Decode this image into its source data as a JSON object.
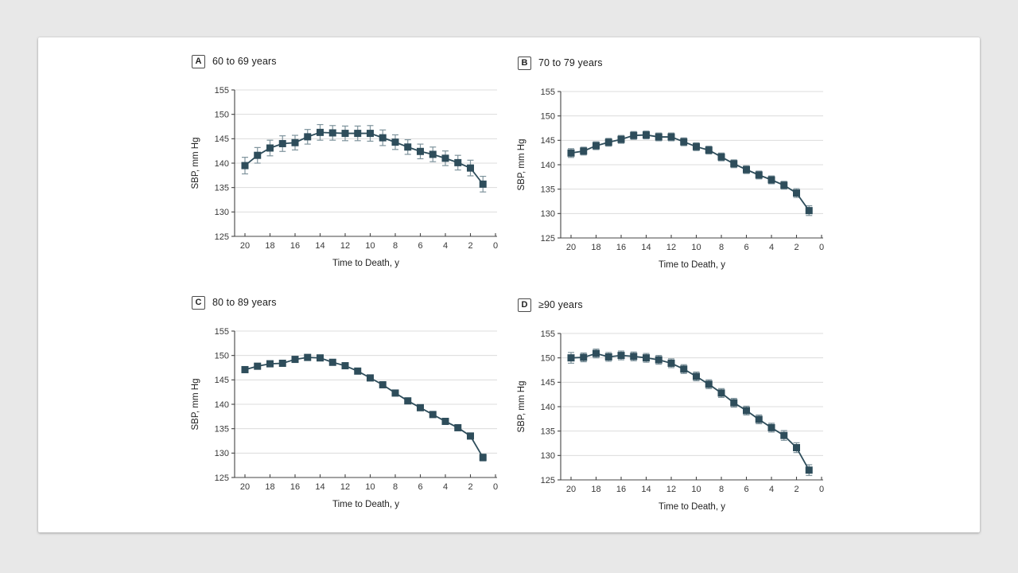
{
  "page": {
    "background_color": "#e8e8e8",
    "card_color": "#ffffff"
  },
  "style": {
    "series_color": "#2e4d5b",
    "error_bar_color": "#7e939c",
    "grid_color": "#dcdcdc",
    "axis_color": "#444444",
    "tick_text_color": "#383838",
    "title_text_color": "#222222"
  },
  "chart_data": [
    {
      "type": "line",
      "panel_label": "A",
      "title": "60 to 69 years",
      "xlabel": "Time to Death, y",
      "ylabel": "SBP, mm Hg",
      "x": [
        20,
        19,
        18,
        17,
        16,
        15,
        14,
        13,
        12,
        11,
        10,
        9,
        8,
        7,
        6,
        5,
        4,
        3,
        2,
        1
      ],
      "values": [
        139.5,
        141.6,
        143.1,
        144.0,
        144.2,
        145.4,
        146.3,
        146.2,
        146.1,
        146.1,
        146.1,
        145.2,
        144.3,
        143.3,
        142.4,
        141.8,
        141.0,
        140.1,
        139.0,
        135.7
      ],
      "errors": [
        1.7,
        1.6,
        1.6,
        1.6,
        1.5,
        1.5,
        1.6,
        1.5,
        1.5,
        1.5,
        1.6,
        1.6,
        1.5,
        1.5,
        1.5,
        1.5,
        1.5,
        1.5,
        1.6,
        1.6
      ],
      "ylim": [
        125,
        155
      ],
      "yticks": [
        125,
        130,
        135,
        140,
        145,
        150,
        155
      ],
      "xticks": [
        20,
        18,
        16,
        14,
        12,
        10,
        8,
        6,
        4,
        2,
        0
      ],
      "x_axis_reversed": true,
      "grid": true,
      "marker": "square",
      "legend": "none"
    },
    {
      "type": "line",
      "panel_label": "B",
      "title": "70 to 79 years",
      "xlabel": "Time to Death, y",
      "ylabel": "SBP, mm Hg",
      "x": [
        20,
        19,
        18,
        17,
        16,
        15,
        14,
        13,
        12,
        11,
        10,
        9,
        8,
        7,
        6,
        5,
        4,
        3,
        2,
        1
      ],
      "values": [
        142.4,
        142.8,
        143.9,
        144.6,
        145.2,
        146.0,
        146.1,
        145.7,
        145.7,
        144.7,
        143.7,
        143.0,
        141.6,
        140.2,
        139.0,
        137.9,
        136.9,
        135.8,
        134.2,
        130.6
      ],
      "errors": [
        0.9,
        0.8,
        0.8,
        0.8,
        0.8,
        0.8,
        0.8,
        0.8,
        0.8,
        0.8,
        0.8,
        0.8,
        0.8,
        0.8,
        0.8,
        0.8,
        0.8,
        0.8,
        0.9,
        1.0
      ],
      "ylim": [
        125,
        155
      ],
      "yticks": [
        125,
        130,
        135,
        140,
        145,
        150,
        155
      ],
      "xticks": [
        20,
        18,
        16,
        14,
        12,
        10,
        8,
        6,
        4,
        2,
        0
      ],
      "x_axis_reversed": true,
      "grid": true,
      "marker": "square",
      "legend": "none"
    },
    {
      "type": "line",
      "panel_label": "C",
      "title": "80 to 89 years",
      "xlabel": "Time to Death, y",
      "ylabel": "SBP, mm Hg",
      "x": [
        20,
        19,
        18,
        17,
        16,
        15,
        14,
        13,
        12,
        11,
        10,
        9,
        8,
        7,
        6,
        5,
        4,
        3,
        2,
        1
      ],
      "values": [
        147.1,
        147.8,
        148.3,
        148.4,
        149.2,
        149.6,
        149.5,
        148.6,
        147.9,
        146.8,
        145.4,
        144.0,
        142.3,
        140.7,
        139.3,
        137.9,
        136.5,
        135.2,
        133.5,
        129.1
      ],
      "errors": [
        0.6,
        0.5,
        0.5,
        0.5,
        0.5,
        0.5,
        0.5,
        0.5,
        0.5,
        0.5,
        0.5,
        0.5,
        0.5,
        0.5,
        0.5,
        0.5,
        0.5,
        0.5,
        0.6,
        0.7
      ],
      "ylim": [
        125,
        155
      ],
      "yticks": [
        125,
        130,
        135,
        140,
        145,
        150,
        155
      ],
      "xticks": [
        20,
        18,
        16,
        14,
        12,
        10,
        8,
        6,
        4,
        2,
        0
      ],
      "x_axis_reversed": true,
      "grid": true,
      "marker": "square",
      "legend": "none"
    },
    {
      "type": "line",
      "panel_label": "D",
      "title": "≥90 years",
      "xlabel": "Time to Death, y",
      "ylabel": "SBP, mm Hg",
      "x": [
        20,
        19,
        18,
        17,
        16,
        15,
        14,
        13,
        12,
        11,
        10,
        9,
        8,
        7,
        6,
        5,
        4,
        3,
        2,
        1
      ],
      "values": [
        150.0,
        150.1,
        150.9,
        150.2,
        150.5,
        150.3,
        150.0,
        149.6,
        148.9,
        147.7,
        146.2,
        144.6,
        142.8,
        140.8,
        139.2,
        137.4,
        135.7,
        134.1,
        131.6,
        127.0
      ],
      "errors": [
        1.1,
        0.9,
        0.9,
        0.9,
        0.9,
        0.9,
        0.9,
        0.9,
        0.9,
        0.9,
        0.9,
        0.9,
        0.9,
        0.9,
        0.9,
        0.9,
        0.9,
        1.0,
        1.0,
        1.1
      ],
      "ylim": [
        125,
        155
      ],
      "yticks": [
        125,
        130,
        135,
        140,
        145,
        150,
        155
      ],
      "xticks": [
        20,
        18,
        16,
        14,
        12,
        10,
        8,
        6,
        4,
        2,
        0
      ],
      "x_axis_reversed": true,
      "grid": true,
      "marker": "square",
      "legend": "none"
    }
  ]
}
